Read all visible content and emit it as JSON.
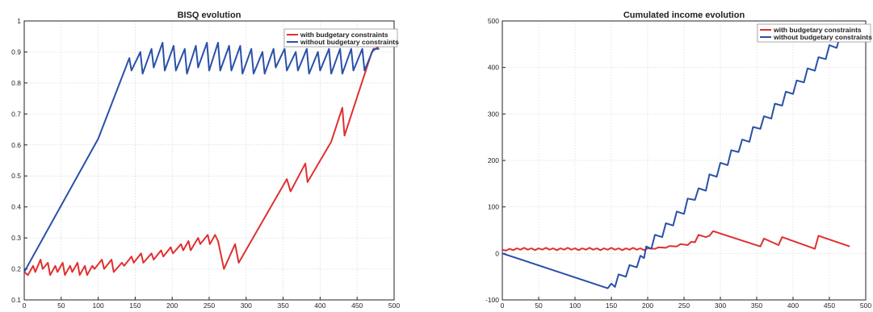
{
  "chart_data": [
    {
      "type": "line",
      "title": "BISQ evolution",
      "xlabel": "",
      "ylabel": "",
      "xlim": [
        0,
        500
      ],
      "ylim": [
        0.1,
        1
      ],
      "xticks": [
        0,
        50,
        100,
        150,
        200,
        250,
        300,
        350,
        400,
        450,
        500
      ],
      "yticks": [
        0.1,
        0.2,
        0.3,
        0.4,
        0.5,
        0.6,
        0.7,
        0.8,
        0.9,
        1
      ],
      "ytick_labels": [
        "0.1",
        "0.2",
        "0.3",
        "0.4",
        "0.5",
        "0.6",
        "0.7",
        "0.8",
        "0.9",
        "1"
      ],
      "grid": true,
      "legend_position": "top-right",
      "series": [
        {
          "name": "with budgetary constraints",
          "color": "#e03030",
          "points": [
            [
              0,
              0.19
            ],
            [
              5,
              0.18
            ],
            [
              12,
              0.21
            ],
            [
              15,
              0.19
            ],
            [
              22,
              0.23
            ],
            [
              25,
              0.2
            ],
            [
              32,
              0.22
            ],
            [
              35,
              0.18
            ],
            [
              42,
              0.21
            ],
            [
              45,
              0.19
            ],
            [
              52,
              0.22
            ],
            [
              55,
              0.18
            ],
            [
              62,
              0.21
            ],
            [
              65,
              0.19
            ],
            [
              72,
              0.22
            ],
            [
              75,
              0.18
            ],
            [
              82,
              0.21
            ],
            [
              85,
              0.18
            ],
            [
              92,
              0.21
            ],
            [
              95,
              0.2
            ],
            [
              105,
              0.23
            ],
            [
              108,
              0.2
            ],
            [
              118,
              0.23
            ],
            [
              121,
              0.19
            ],
            [
              132,
              0.22
            ],
            [
              135,
              0.21
            ],
            [
              145,
              0.24
            ],
            [
              148,
              0.22
            ],
            [
              158,
              0.25
            ],
            [
              161,
              0.22
            ],
            [
              172,
              0.25
            ],
            [
              175,
              0.23
            ],
            [
              185,
              0.26
            ],
            [
              188,
              0.24
            ],
            [
              198,
              0.27
            ],
            [
              201,
              0.25
            ],
            [
              212,
              0.28
            ],
            [
              215,
              0.26
            ],
            [
              222,
              0.29
            ],
            [
              225,
              0.26
            ],
            [
              235,
              0.3
            ],
            [
              238,
              0.28
            ],
            [
              248,
              0.31
            ],
            [
              251,
              0.28
            ],
            [
              258,
              0.31
            ],
            [
              262,
              0.29
            ],
            [
              270,
              0.2
            ],
            [
              285,
              0.28
            ],
            [
              290,
              0.22
            ],
            [
              355,
              0.49
            ],
            [
              360,
              0.45
            ],
            [
              380,
              0.54
            ],
            [
              383,
              0.48
            ],
            [
              415,
              0.61
            ],
            [
              430,
              0.72
            ],
            [
              433,
              0.63
            ],
            [
              470,
              0.9
            ],
            [
              480,
              0.92
            ]
          ]
        },
        {
          "name": "without budgetary constraints",
          "color": "#2a50a8",
          "points": [
            [
              0,
              0.19
            ],
            [
              100,
              0.62
            ],
            [
              142,
              0.88
            ],
            [
              145,
              0.84
            ],
            [
              157,
              0.9
            ],
            [
              160,
              0.83
            ],
            [
              172,
              0.91
            ],
            [
              175,
              0.85
            ],
            [
              187,
              0.93
            ],
            [
              190,
              0.84
            ],
            [
              202,
              0.92
            ],
            [
              205,
              0.84
            ],
            [
              217,
              0.91
            ],
            [
              220,
              0.83
            ],
            [
              232,
              0.92
            ],
            [
              235,
              0.85
            ],
            [
              247,
              0.93
            ],
            [
              250,
              0.84
            ],
            [
              262,
              0.93
            ],
            [
              265,
              0.84
            ],
            [
              277,
              0.92
            ],
            [
              280,
              0.84
            ],
            [
              292,
              0.92
            ],
            [
              295,
              0.83
            ],
            [
              307,
              0.91
            ],
            [
              310,
              0.83
            ],
            [
              322,
              0.9
            ],
            [
              325,
              0.83
            ],
            [
              337,
              0.91
            ],
            [
              340,
              0.85
            ],
            [
              352,
              0.91
            ],
            [
              355,
              0.84
            ],
            [
              367,
              0.9
            ],
            [
              370,
              0.84
            ],
            [
              382,
              0.91
            ],
            [
              385,
              0.83
            ],
            [
              397,
              0.9
            ],
            [
              400,
              0.84
            ],
            [
              412,
              0.91
            ],
            [
              415,
              0.83
            ],
            [
              427,
              0.91
            ],
            [
              430,
              0.83
            ],
            [
              442,
              0.91
            ],
            [
              445,
              0.84
            ],
            [
              457,
              0.91
            ],
            [
              460,
              0.84
            ],
            [
              472,
              0.91
            ],
            [
              480,
              0.91
            ]
          ]
        }
      ]
    },
    {
      "type": "line",
      "title": "Cumulated income evolution",
      "xlabel": "",
      "ylabel": "",
      "xlim": [
        0,
        500
      ],
      "ylim": [
        -100,
        500
      ],
      "xticks": [
        0,
        50,
        100,
        150,
        200,
        250,
        300,
        350,
        400,
        450,
        500
      ],
      "yticks": [
        -100,
        0,
        100,
        200,
        300,
        400,
        500
      ],
      "ytick_labels": [
        "-100",
        "0",
        "100",
        "200",
        "300",
        "400",
        "500"
      ],
      "grid": true,
      "legend_position": "top-right",
      "series": [
        {
          "name": "with budgetary constraints",
          "color": "#e03030",
          "points": [
            [
              0,
              8
            ],
            [
              5,
              6
            ],
            [
              10,
              10
            ],
            [
              15,
              7
            ],
            [
              20,
              11
            ],
            [
              25,
              8
            ],
            [
              30,
              12
            ],
            [
              35,
              8
            ],
            [
              40,
              11
            ],
            [
              45,
              7
            ],
            [
              50,
              11
            ],
            [
              55,
              8
            ],
            [
              60,
              12
            ],
            [
              65,
              8
            ],
            [
              70,
              11
            ],
            [
              75,
              7
            ],
            [
              80,
              11
            ],
            [
              85,
              8
            ],
            [
              90,
              12
            ],
            [
              95,
              8
            ],
            [
              100,
              11
            ],
            [
              105,
              7
            ],
            [
              110,
              11
            ],
            [
              115,
              8
            ],
            [
              120,
              12
            ],
            [
              125,
              8
            ],
            [
              130,
              11
            ],
            [
              135,
              7
            ],
            [
              140,
              11
            ],
            [
              145,
              8
            ],
            [
              150,
              12
            ],
            [
              155,
              8
            ],
            [
              160,
              11
            ],
            [
              165,
              7
            ],
            [
              170,
              11
            ],
            [
              175,
              8
            ],
            [
              180,
              12
            ],
            [
              185,
              8
            ],
            [
              190,
              11
            ],
            [
              195,
              7
            ],
            [
              200,
              11
            ],
            [
              210,
              10
            ],
            [
              215,
              13
            ],
            [
              225,
              12
            ],
            [
              230,
              16
            ],
            [
              240,
              15
            ],
            [
              245,
              20
            ],
            [
              255,
              18
            ],
            [
              260,
              25
            ],
            [
              265,
              24
            ],
            [
              270,
              40
            ],
            [
              280,
              35
            ],
            [
              285,
              38
            ],
            [
              290,
              48
            ],
            [
              355,
              15
            ],
            [
              360,
              32
            ],
            [
              380,
              18
            ],
            [
              385,
              35
            ],
            [
              430,
              10
            ],
            [
              435,
              38
            ],
            [
              478,
              15
            ]
          ]
        },
        {
          "name": "without budgetary constraints",
          "color": "#2a50a8",
          "points": [
            [
              0,
              0
            ],
            [
              145,
              -75
            ],
            [
              150,
              -65
            ],
            [
              155,
              -72
            ],
            [
              160,
              -45
            ],
            [
              170,
              -50
            ],
            [
              175,
              -25
            ],
            [
              185,
              -30
            ],
            [
              190,
              -5
            ],
            [
              195,
              -10
            ],
            [
              198,
              15
            ],
            [
              205,
              10
            ],
            [
              210,
              40
            ],
            [
              220,
              35
            ],
            [
              225,
              65
            ],
            [
              235,
              60
            ],
            [
              240,
              90
            ],
            [
              250,
              85
            ],
            [
              255,
              118
            ],
            [
              265,
              115
            ],
            [
              270,
              140
            ],
            [
              280,
              135
            ],
            [
              285,
              170
            ],
            [
              295,
              165
            ],
            [
              300,
              195
            ],
            [
              310,
              190
            ],
            [
              315,
              222
            ],
            [
              325,
              218
            ],
            [
              330,
              245
            ],
            [
              340,
              240
            ],
            [
              345,
              272
            ],
            [
              355,
              268
            ],
            [
              360,
              295
            ],
            [
              370,
              290
            ],
            [
              375,
              322
            ],
            [
              385,
              318
            ],
            [
              390,
              348
            ],
            [
              400,
              343
            ],
            [
              405,
              372
            ],
            [
              415,
              368
            ],
            [
              420,
              398
            ],
            [
              430,
              393
            ],
            [
              435,
              422
            ],
            [
              445,
              418
            ],
            [
              450,
              448
            ],
            [
              460,
              442
            ],
            [
              465,
              470
            ],
            [
              478,
              478
            ]
          ]
        }
      ]
    }
  ]
}
